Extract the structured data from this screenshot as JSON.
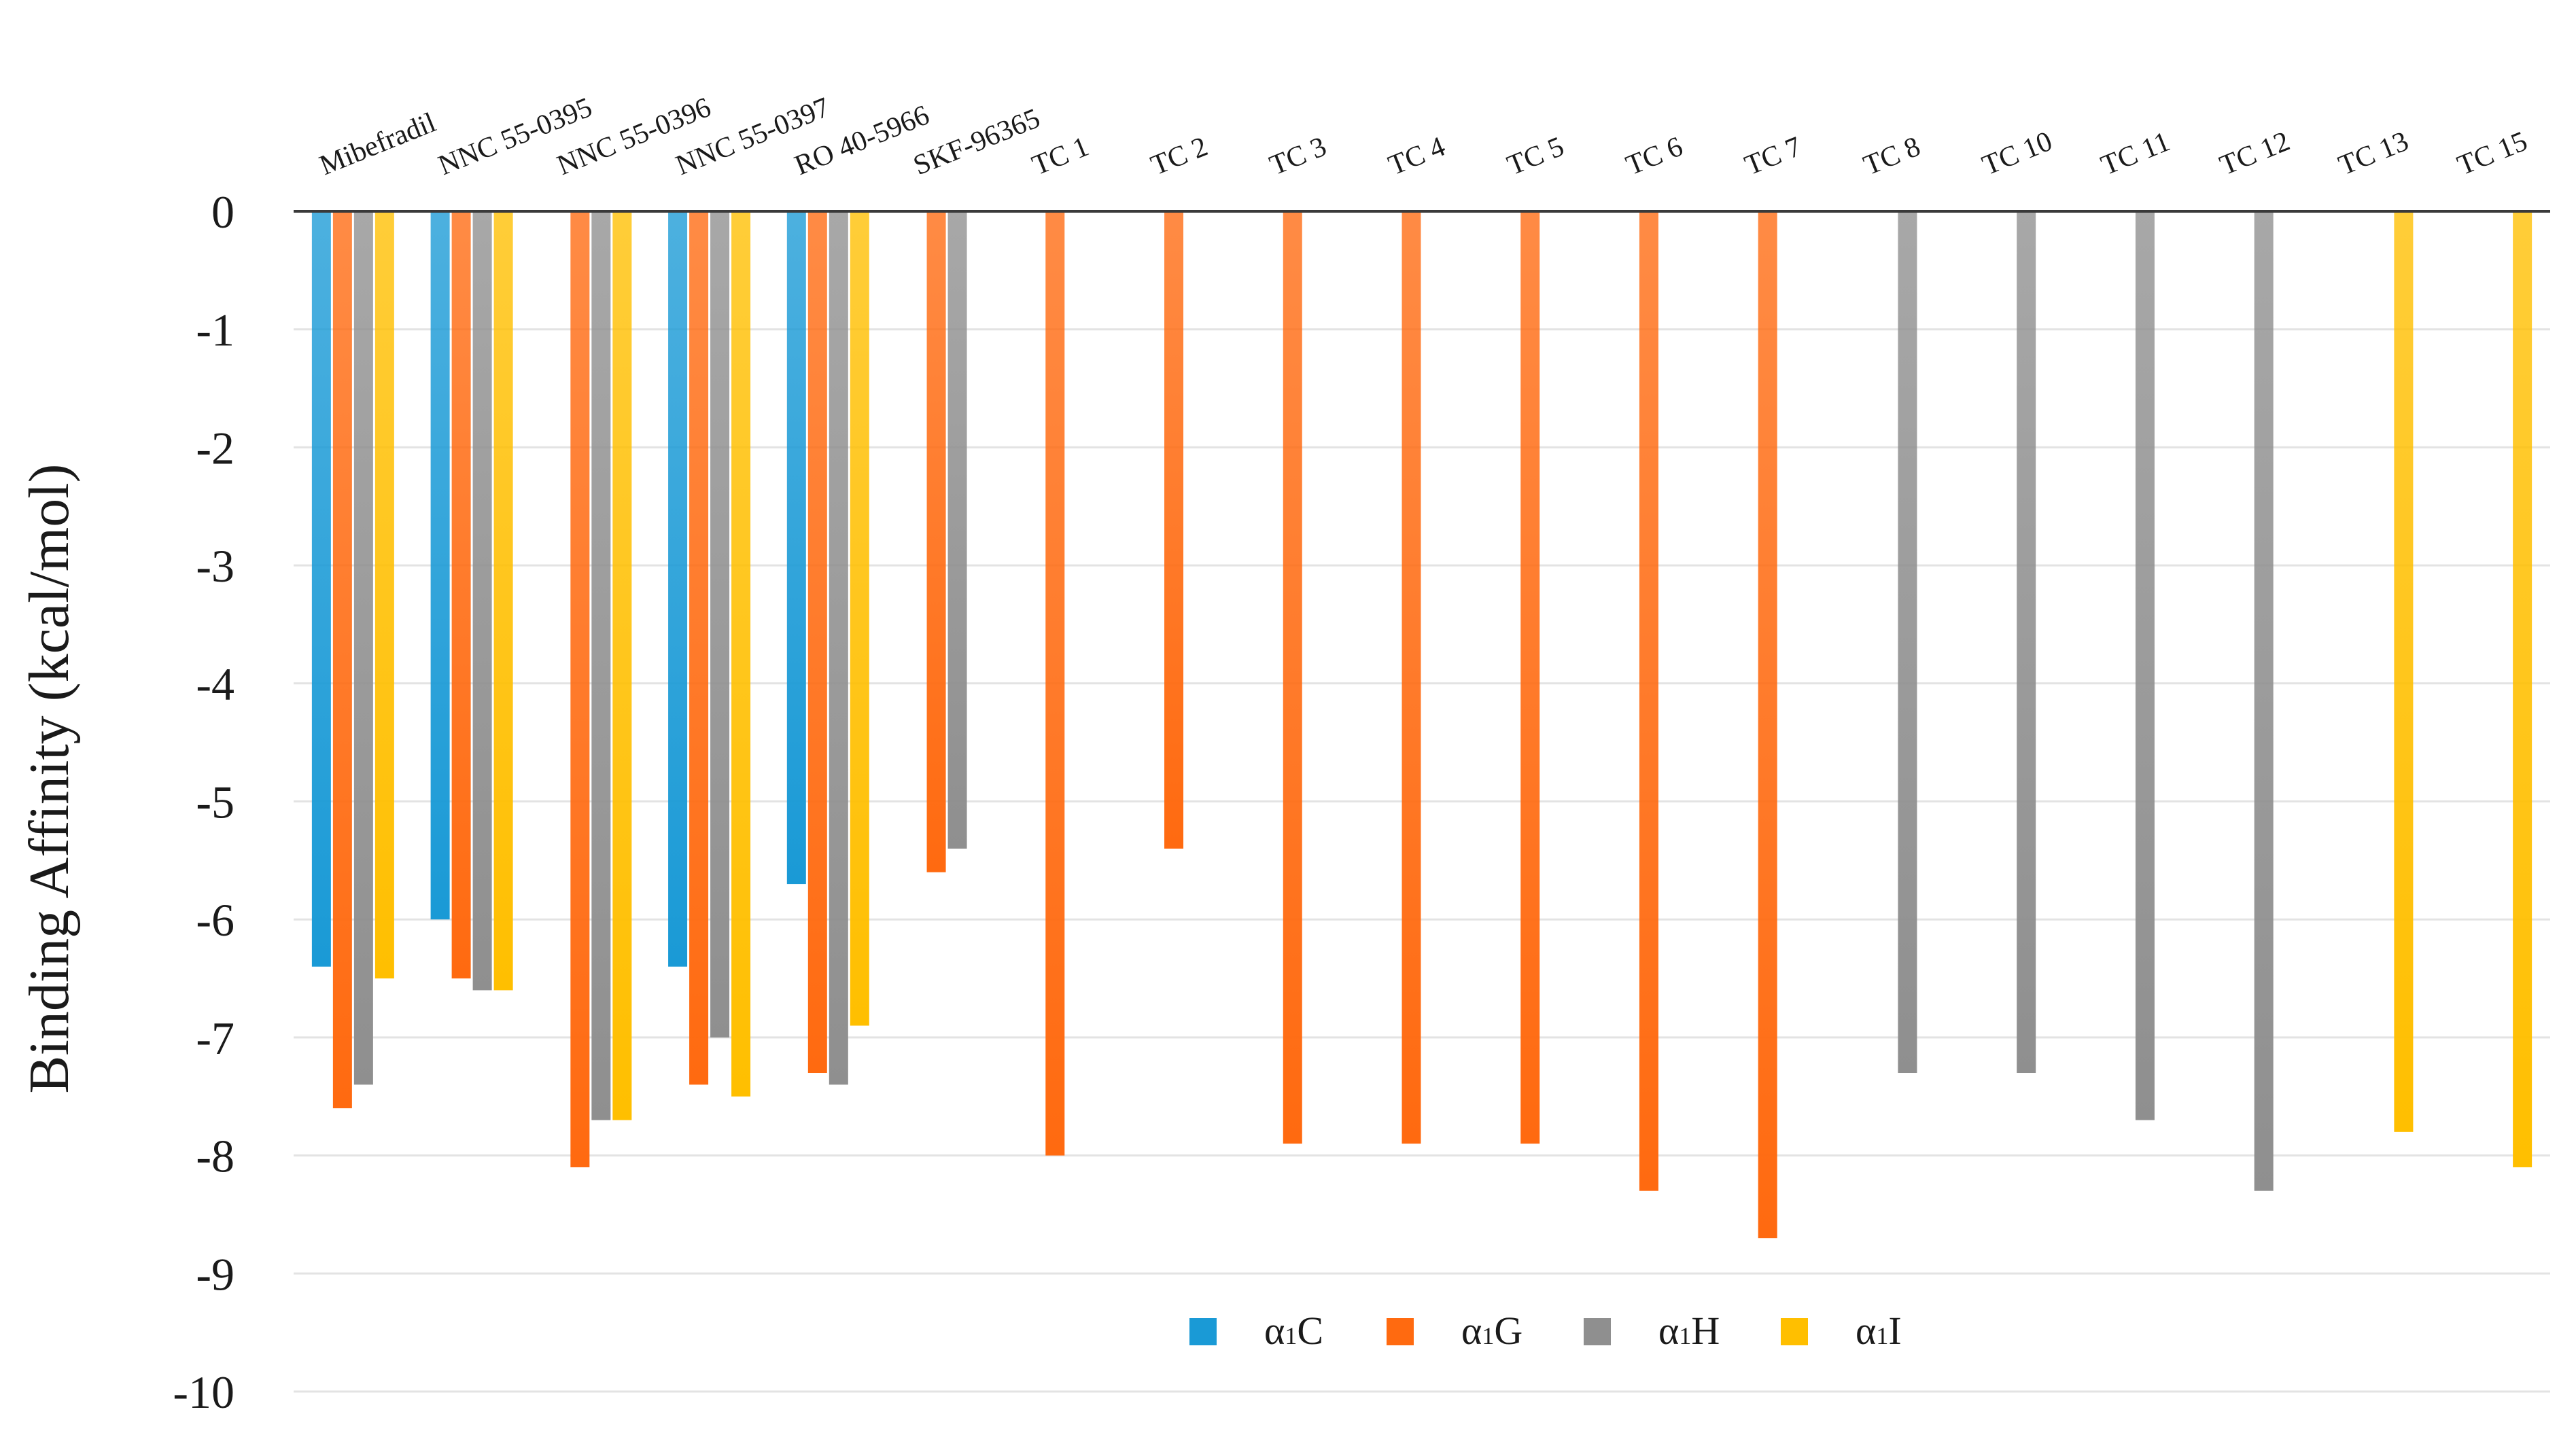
{
  "chart_data": {
    "type": "bar",
    "title": "",
    "xlabel": "",
    "ylabel": "Binding Affinity (kcal/mol)",
    "ylim": [
      -10,
      0
    ],
    "yticks": [
      "0",
      "-1",
      "-2",
      "-3",
      "-4",
      "-5",
      "-6",
      "-7",
      "-8",
      "-9",
      "-10"
    ],
    "grid": true,
    "legend_position": "bottom-center",
    "categories": [
      "Mibefradil",
      "NNC 55-0395",
      "NNC 55-0396",
      "NNC 55-0397",
      "RO 40-5966",
      "SKF-96365",
      "TC 1",
      "TC 2",
      "TC 3",
      "TC 4",
      "TC 5",
      "TC 6",
      "TC 7",
      "TC 8",
      "TC 10",
      "TC 11",
      "TC 12",
      "TC 13",
      "TC 15"
    ],
    "series": [
      {
        "name": "α1C",
        "name_greek": "α",
        "name_sub": "1",
        "name_letter": "C",
        "color": "#1a9ad6",
        "values": [
          -6.4,
          -6.0,
          null,
          -6.4,
          -5.7,
          null,
          null,
          null,
          null,
          null,
          null,
          null,
          null,
          null,
          null,
          null,
          null,
          null,
          null
        ]
      },
      {
        "name": "α1G",
        "name_greek": "α",
        "name_sub": "1",
        "name_letter": "G",
        "color": "#ff6a10",
        "values": [
          -7.6,
          -6.5,
          -8.1,
          -7.4,
          -7.3,
          -5.6,
          -8.0,
          -5.4,
          -7.9,
          -7.9,
          -7.9,
          -8.3,
          -8.7,
          null,
          null,
          null,
          null,
          null,
          null
        ]
      },
      {
        "name": "α1H",
        "name_greek": "α",
        "name_sub": "1",
        "name_letter": "H",
        "color": "#8f8f8f",
        "values": [
          -7.4,
          -6.6,
          -7.7,
          -7.0,
          -7.4,
          -5.4,
          null,
          null,
          null,
          null,
          null,
          null,
          null,
          -7.3,
          -7.3,
          -7.7,
          -8.3,
          null,
          null
        ]
      },
      {
        "name": "α1I",
        "name_greek": "α",
        "name_sub": "1",
        "name_letter": "I",
        "color": "#ffbf00",
        "values": [
          -6.5,
          -6.6,
          -7.7,
          -7.5,
          -6.9,
          null,
          null,
          null,
          null,
          null,
          null,
          null,
          null,
          null,
          null,
          null,
          null,
          -7.8,
          -8.1
        ]
      }
    ]
  }
}
